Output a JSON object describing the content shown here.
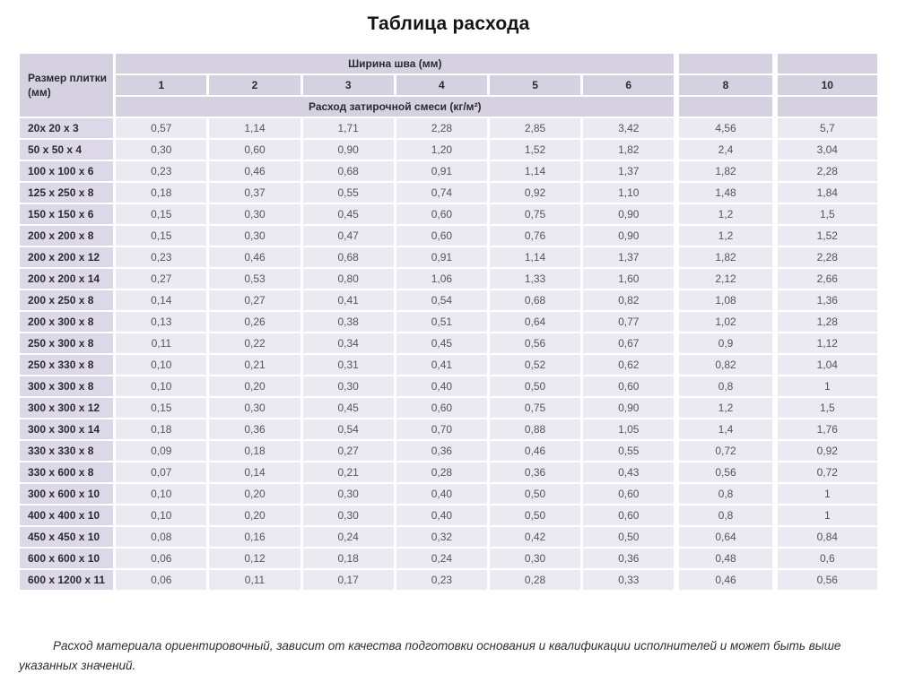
{
  "title": "Таблица расхода",
  "footnote": "Расход материала ориентировочный, зависит от качества подготовки основания и квалификации исполнителей и может быть выше указанных значений.",
  "colors": {
    "header_bg": "#d5d1e1",
    "row_label_bg": "#dcd8e7",
    "cell_bg": "#ebe9f2",
    "value_text": "#56535c",
    "label_text": "#2b2933"
  },
  "chart_data": {
    "type": "table",
    "corner_header": "Размер плитки (мм)",
    "group_header": "Ширина шва (мм)",
    "unit_header": "Расход затирочной смеси (кг/м²)",
    "columns": [
      "1",
      "2",
      "3",
      "4",
      "5",
      "6",
      "8",
      "10"
    ],
    "rows": [
      {
        "size": "20х 20 х 3",
        "values": [
          "0,57",
          "1,14",
          "1,71",
          "2,28",
          "2,85",
          "3,42",
          "4,56",
          "5,7"
        ]
      },
      {
        "size": "50 х 50 х 4",
        "values": [
          "0,30",
          "0,60",
          "0,90",
          "1,20",
          "1,52",
          "1,82",
          "2,4",
          "3,04"
        ]
      },
      {
        "size": "100 х 100 х 6",
        "values": [
          "0,23",
          "0,46",
          "0,68",
          "0,91",
          "1,14",
          "1,37",
          "1,82",
          "2,28"
        ]
      },
      {
        "size": "125 х 250 х 8",
        "values": [
          "0,18",
          "0,37",
          "0,55",
          "0,74",
          "0,92",
          "1,10",
          "1,48",
          "1,84"
        ]
      },
      {
        "size": "150 х 150 х 6",
        "values": [
          "0,15",
          "0,30",
          "0,45",
          "0,60",
          "0,75",
          "0,90",
          "1,2",
          "1,5"
        ]
      },
      {
        "size": "200 х 200 х 8",
        "values": [
          "0,15",
          "0,30",
          "0,47",
          "0,60",
          "0,76",
          "0,90",
          "1,2",
          "1,52"
        ]
      },
      {
        "size": "200 х 200 х 12",
        "values": [
          "0,23",
          "0,46",
          "0,68",
          "0,91",
          "1,14",
          "1,37",
          "1,82",
          "2,28"
        ]
      },
      {
        "size": "200 х 200 х 14",
        "values": [
          "0,27",
          "0,53",
          "0,80",
          "1,06",
          "1,33",
          "1,60",
          "2,12",
          "2,66"
        ]
      },
      {
        "size": "200 х 250 х 8",
        "values": [
          "0,14",
          "0,27",
          "0,41",
          "0,54",
          "0,68",
          "0,82",
          "1,08",
          "1,36"
        ]
      },
      {
        "size": "200 х 300 х 8",
        "values": [
          "0,13",
          "0,26",
          "0,38",
          "0,51",
          "0,64",
          "0,77",
          "1,02",
          "1,28"
        ]
      },
      {
        "size": "250 х 300 х 8",
        "values": [
          "0,11",
          "0,22",
          "0,34",
          "0,45",
          "0,56",
          "0,67",
          "0,9",
          "1,12"
        ]
      },
      {
        "size": "250 х 330 х 8",
        "values": [
          "0,10",
          "0,21",
          "0,31",
          "0,41",
          "0,52",
          "0,62",
          "0,82",
          "1,04"
        ]
      },
      {
        "size": "300 х 300 х 8",
        "values": [
          "0,10",
          "0,20",
          "0,30",
          "0,40",
          "0,50",
          "0,60",
          "0,8",
          "1"
        ]
      },
      {
        "size": "300 х 300 х 12",
        "values": [
          "0,15",
          "0,30",
          "0,45",
          "0,60",
          "0,75",
          "0,90",
          "1,2",
          "1,5"
        ]
      },
      {
        "size": "300 х 300 х 14",
        "values": [
          "0,18",
          "0,36",
          "0,54",
          "0,70",
          "0,88",
          "1,05",
          "1,4",
          "1,76"
        ]
      },
      {
        "size": "330 х 330 х 8",
        "values": [
          "0,09",
          "0,18",
          "0,27",
          "0,36",
          "0,46",
          "0,55",
          "0,72",
          "0,92"
        ]
      },
      {
        "size": "330 х 600 х 8",
        "values": [
          "0,07",
          "0,14",
          "0,21",
          "0,28",
          "0,36",
          "0,43",
          "0,56",
          "0,72"
        ]
      },
      {
        "size": "300 х 600 х 10",
        "values": [
          "0,10",
          "0,20",
          "0,30",
          "0,40",
          "0,50",
          "0,60",
          "0,8",
          "1"
        ]
      },
      {
        "size": "400 х 400 х 10",
        "values": [
          "0,10",
          "0,20",
          "0,30",
          "0,40",
          "0,50",
          "0,60",
          "0,8",
          "1"
        ]
      },
      {
        "size": "450 х 450 х 10",
        "values": [
          "0,08",
          "0,16",
          "0,24",
          "0,32",
          "0,42",
          "0,50",
          "0,64",
          "0,84"
        ]
      },
      {
        "size": "600 х 600 х 10",
        "values": [
          "0,06",
          "0,12",
          "0,18",
          "0,24",
          "0,30",
          "0,36",
          "0,48",
          "0,6"
        ]
      },
      {
        "size": "600 х 1200 х 11",
        "values": [
          "0,06",
          "0,11",
          "0,17",
          "0,23",
          "0,28",
          "0,33",
          "0,46",
          "0,56"
        ]
      }
    ]
  }
}
